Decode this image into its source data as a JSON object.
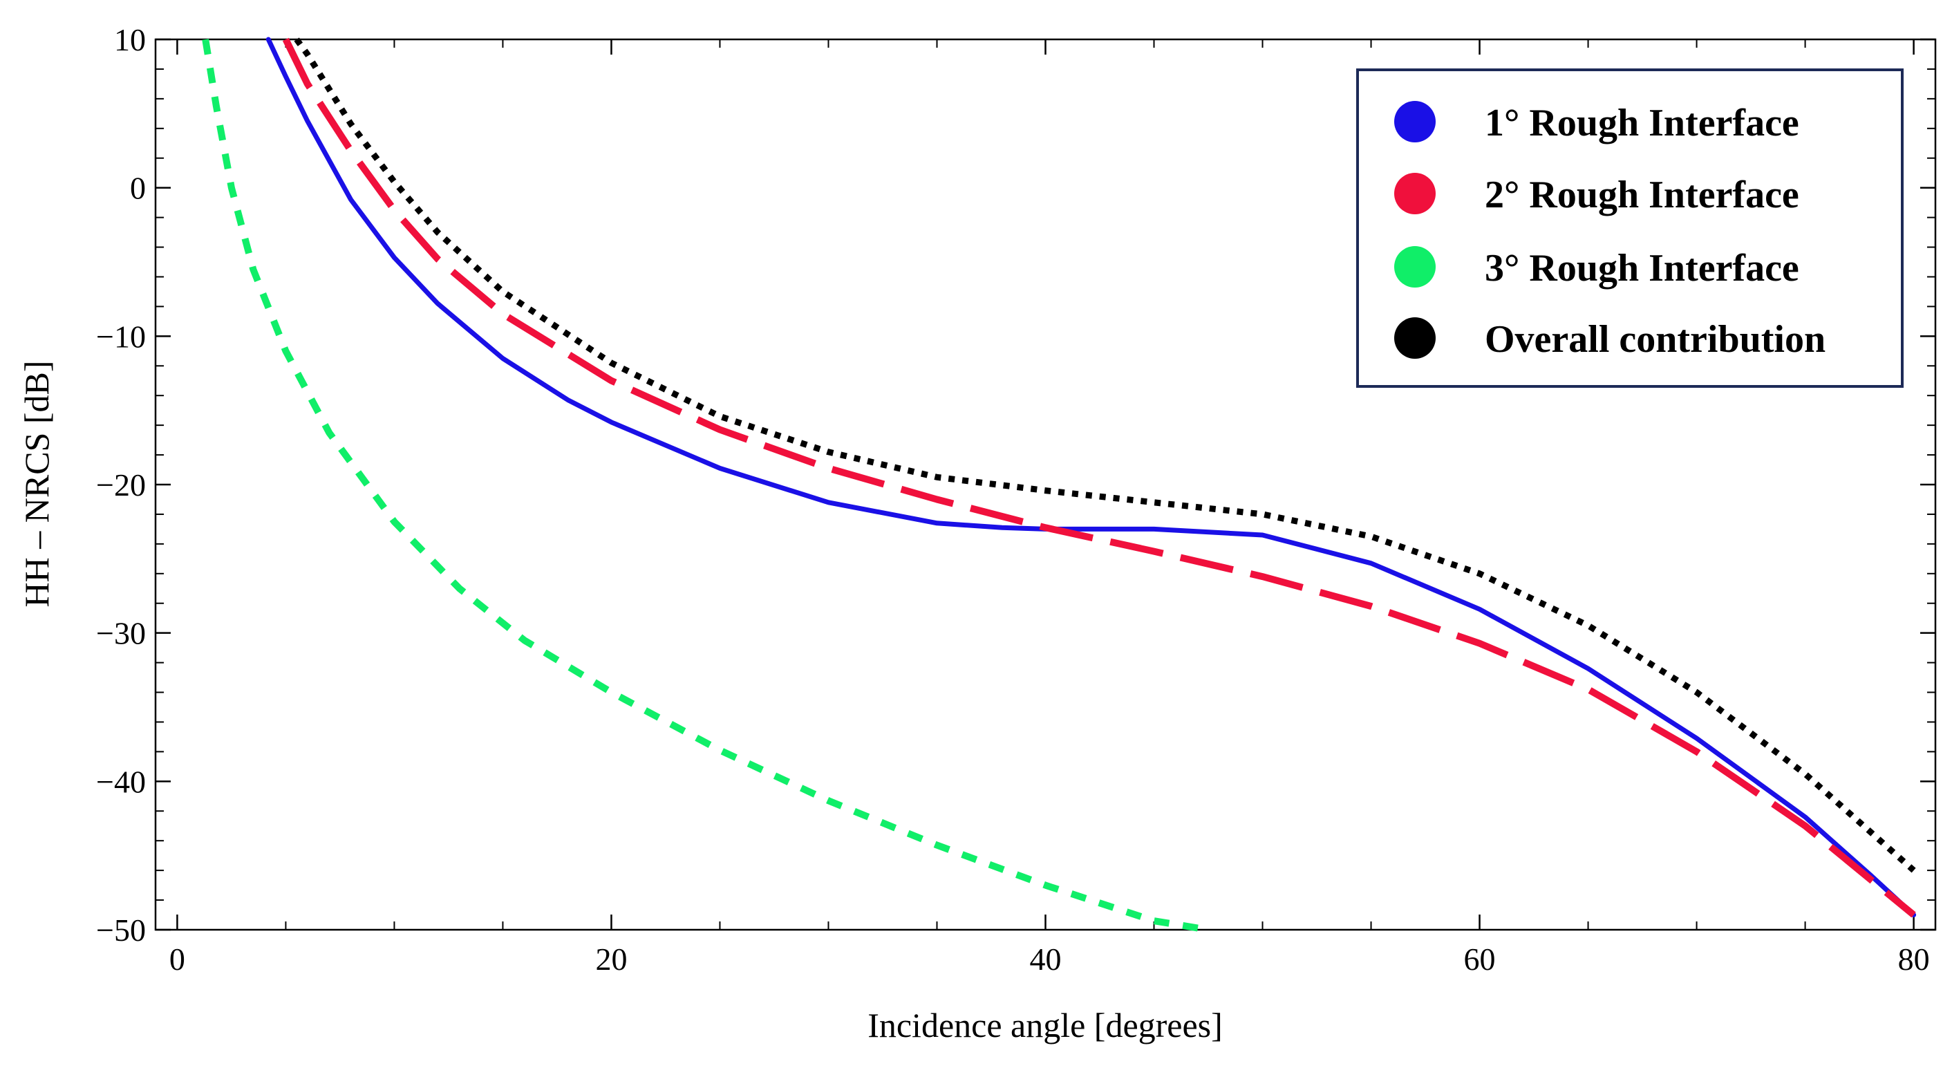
{
  "chart_data": {
    "type": "line",
    "title": "",
    "xlabel": "Incidence angle [degrees]",
    "ylabel": "HH – NRCS [dB]",
    "xlim": [
      -1,
      81
    ],
    "ylim": [
      -50,
      10
    ],
    "xticks": [
      0,
      20,
      40,
      60,
      80
    ],
    "yticks": [
      10,
      0,
      -10,
      -20,
      -30,
      -40,
      -50
    ],
    "xtick_labels": [
      "0",
      "20",
      "40",
      "60",
      "80"
    ],
    "ytick_labels": [
      "10",
      "0",
      "−10",
      "−20",
      "−30",
      "−40",
      "−50"
    ],
    "grid": false,
    "legend_position": "top-right",
    "series": [
      {
        "name": "1° Rough Interface",
        "color": "#1a10e6",
        "style": "solid",
        "x": [
          4.2,
          5,
          6,
          8,
          10,
          12,
          15,
          18,
          20,
          25,
          30,
          35,
          38,
          40,
          45,
          50,
          55,
          60,
          65,
          70,
          75,
          78,
          80
        ],
        "y": [
          10,
          7.5,
          4.5,
          -0.8,
          -4.7,
          -7.8,
          -11.5,
          -14.3,
          -15.8,
          -18.9,
          -21.2,
          -22.6,
          -22.9,
          -23.0,
          -23.0,
          -23.4,
          -25.3,
          -28.4,
          -32.4,
          -37.1,
          -42.4,
          -46.3,
          -49
        ]
      },
      {
        "name": "2° Rough Interface",
        "color": "#f0103c",
        "style": "dashed",
        "x": [
          5,
          6,
          8,
          10,
          12,
          15,
          20,
          25,
          30,
          35,
          40,
          45,
          50,
          55,
          60,
          65,
          70,
          75,
          80
        ],
        "y": [
          10,
          7,
          2.5,
          -1.5,
          -4.8,
          -8.5,
          -13.0,
          -16.3,
          -18.9,
          -21.0,
          -22.9,
          -24.5,
          -26.2,
          -28.2,
          -30.7,
          -33.8,
          -38.0,
          -43.0,
          -49
        ]
      },
      {
        "name": "3° Rough Interface",
        "color": "#10ee68",
        "style": "dotted",
        "x": [
          1.3,
          1.8,
          2.5,
          3.5,
          5,
          7,
          10,
          13,
          16,
          20,
          25,
          30,
          35,
          40,
          45,
          47.5
        ],
        "y": [
          10,
          5.5,
          0,
          -5.5,
          -11.0,
          -16.5,
          -22.5,
          -27.0,
          -30.5,
          -34.0,
          -37.9,
          -41.3,
          -44.3,
          -47.0,
          -49.4,
          -50
        ]
      },
      {
        "name": "Overall contribution",
        "color": "#000000",
        "style": "dotted",
        "x": [
          5.5,
          6,
          8,
          10,
          12,
          15,
          20,
          25,
          30,
          35,
          40,
          45,
          50,
          55,
          60,
          65,
          70,
          75,
          80
        ],
        "y": [
          10,
          9,
          4.3,
          0.4,
          -3.0,
          -7.0,
          -11.8,
          -15.4,
          -17.8,
          -19.5,
          -20.4,
          -21.2,
          -22.0,
          -23.5,
          -26.0,
          -29.5,
          -34.0,
          -39.5,
          -46.0
        ]
      }
    ]
  }
}
